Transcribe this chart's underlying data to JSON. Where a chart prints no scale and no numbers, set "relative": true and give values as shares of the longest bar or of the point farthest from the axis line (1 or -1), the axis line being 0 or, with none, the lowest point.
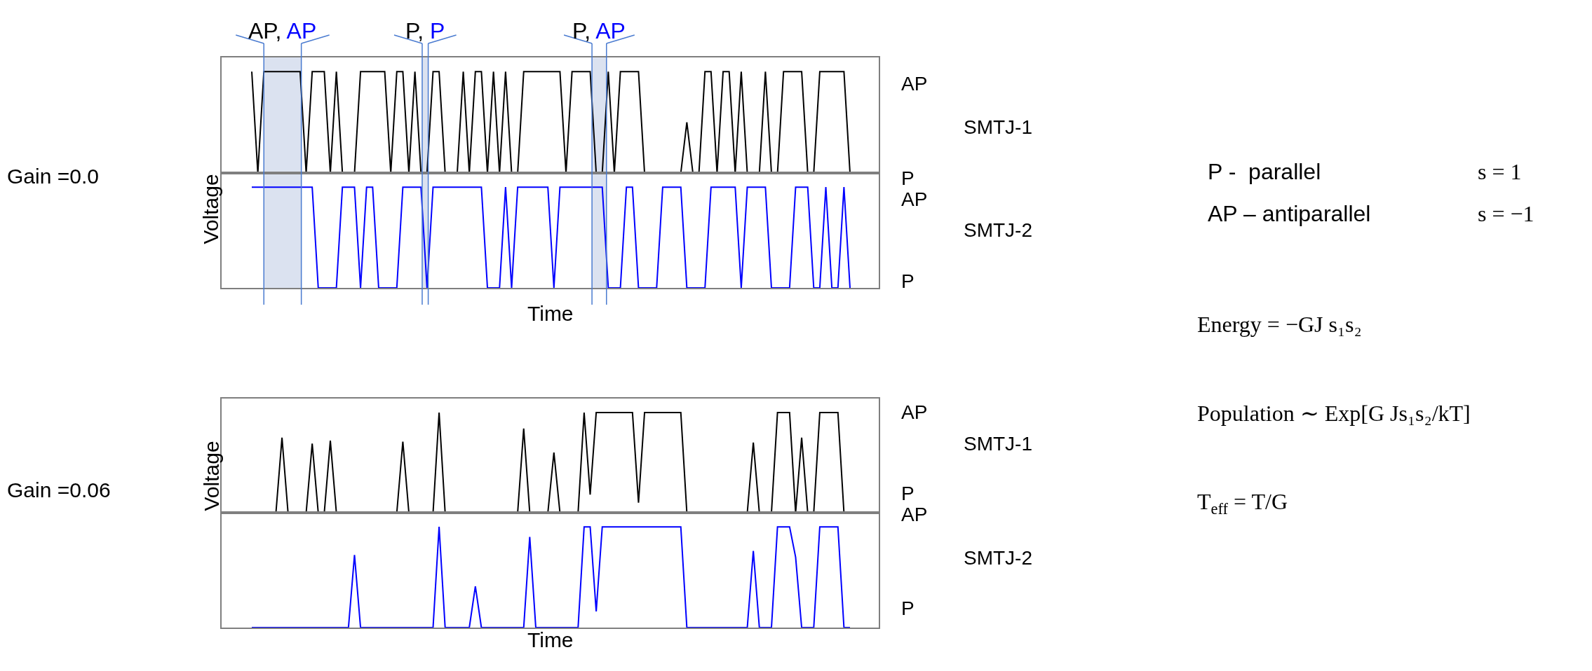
{
  "chart_data": [
    {
      "type": "line",
      "ylabel": "Voltage",
      "relative": true,
      "categories": [
        null,
        null,
        null,
        null,
        null,
        null,
        null,
        null,
        null,
        null,
        null,
        null,
        null,
        null,
        null,
        null,
        null,
        null,
        null,
        null,
        null,
        null,
        null,
        null,
        null,
        null,
        null,
        null,
        null,
        null,
        null,
        null,
        null,
        null,
        null,
        null,
        null,
        null,
        null,
        null,
        null,
        null,
        null,
        null,
        null,
        null,
        null,
        null,
        null,
        null,
        null,
        null,
        null,
        null,
        null,
        null,
        null,
        null,
        null,
        null,
        null,
        null,
        null,
        null,
        null,
        null,
        null,
        null,
        null,
        null,
        null,
        null,
        null,
        null,
        null,
        null,
        null,
        null,
        null,
        null,
        null,
        null,
        null,
        null,
        null,
        null,
        null,
        null,
        null,
        null,
        null,
        null,
        null,
        null,
        null,
        null,
        null,
        null,
        null,
        null
      ],
      "series": [
        {
          "name": "SMTJ-1",
          "color": "#000000",
          "values": [
            1,
            0,
            1,
            1,
            1,
            1,
            1,
            1,
            1,
            0,
            1,
            1,
            1,
            0,
            1,
            0,
            0,
            0,
            1,
            1,
            1,
            1,
            1,
            0,
            1,
            1,
            0,
            1,
            0,
            0,
            1,
            1,
            0,
            0,
            0,
            1,
            0,
            1,
            1,
            0,
            1,
            0,
            1,
            0,
            0,
            1,
            1,
            1,
            1,
            1,
            1,
            1,
            0,
            1,
            1,
            1,
            1,
            0,
            0,
            1,
            0,
            1,
            1,
            1,
            1,
            0,
            0,
            0,
            0,
            0,
            0,
            0,
            0.5,
            0,
            0,
            1,
            1,
            0,
            1,
            1,
            0,
            1,
            0,
            0,
            0,
            1,
            0,
            0,
            1,
            1,
            1,
            1,
            0,
            0,
            1,
            1,
            1,
            1,
            1,
            0
          ]
        }
      ],
      "annotations": [
        "AP",
        "P",
        "Gain =0.0",
        "AP, AP",
        "P, P",
        "P, AP"
      ]
    },
    {
      "type": "line",
      "xlabel": "Time",
      "relative": true,
      "categories": [
        null,
        null,
        null,
        null,
        null,
        null,
        null,
        null,
        null,
        null,
        null,
        null,
        null,
        null,
        null,
        null,
        null,
        null,
        null,
        null,
        null,
        null,
        null,
        null,
        null,
        null,
        null,
        null,
        null,
        null,
        null,
        null,
        null,
        null,
        null,
        null,
        null,
        null,
        null,
        null,
        null,
        null,
        null,
        null,
        null,
        null,
        null,
        null,
        null,
        null,
        null,
        null,
        null,
        null,
        null,
        null,
        null,
        null,
        null,
        null,
        null,
        null,
        null,
        null,
        null,
        null,
        null,
        null,
        null,
        null,
        null,
        null,
        null,
        null,
        null,
        null,
        null,
        null,
        null,
        null,
        null,
        null,
        null,
        null,
        null,
        null,
        null,
        null,
        null,
        null,
        null,
        null,
        null,
        null,
        null,
        null,
        null,
        null,
        null,
        null
      ],
      "series": [
        {
          "name": "SMTJ-2",
          "color": "#0000ff",
          "values": [
            1,
            1,
            1,
            1,
            1,
            1,
            1,
            1,
            1,
            1,
            1,
            0,
            0,
            0,
            0,
            1,
            1,
            1,
            0,
            1,
            1,
            0,
            0,
            0,
            0,
            1,
            1,
            1,
            1,
            0,
            1,
            1,
            1,
            1,
            1,
            1,
            1,
            1,
            1,
            0,
            0,
            0,
            1,
            0,
            1,
            1,
            1,
            1,
            1,
            1,
            0,
            1,
            1,
            1,
            1,
            1,
            1,
            1,
            1,
            0,
            0,
            0,
            1,
            1,
            0,
            0,
            0,
            0,
            1,
            1,
            1,
            1,
            0,
            0,
            0,
            0,
            1,
            1,
            1,
            1,
            1,
            0,
            1,
            1,
            1,
            1,
            0,
            0,
            0,
            0,
            1,
            1,
            1,
            0,
            0,
            1,
            0,
            0,
            1,
            0
          ]
        }
      ],
      "annotations": [
        "AP",
        "P"
      ]
    },
    {
      "type": "other",
      "annotations": [
        "P -  parallel",
        "s = 1",
        "AP – antiparallel",
        "s = −1",
        "Energy = −GJ s₁s₂",
        "Population ∼ Exp[G Js₁s₂/kT]",
        "T$_{eff}$ = T/G"
      ]
    },
    {
      "type": "line",
      "ylabel": "Voltage",
      "relative": true,
      "categories": [
        null,
        null,
        null,
        null,
        null,
        null,
        null,
        null,
        null,
        null,
        null,
        null,
        null,
        null,
        null,
        null,
        null,
        null,
        null,
        null,
        null,
        null,
        null,
        null,
        null,
        null,
        null,
        null,
        null,
        null,
        null,
        null,
        null,
        null,
        null,
        null,
        null,
        null,
        null,
        null,
        null,
        null,
        null,
        null,
        null,
        null,
        null,
        null,
        null,
        null,
        null,
        null,
        null,
        null,
        null,
        null,
        null,
        null,
        null,
        null,
        null,
        null,
        null,
        null,
        null,
        null,
        null,
        null,
        null,
        null,
        null,
        null,
        null,
        null,
        null,
        null,
        null,
        null,
        null,
        null,
        null,
        null,
        null,
        null,
        null,
        null,
        null,
        null,
        null,
        null,
        null,
        null,
        null,
        null,
        null,
        null,
        null,
        null,
        null,
        null
      ],
      "series": [
        {
          "name": "SMTJ-1",
          "color": "#000000",
          "values": [
            0,
            0,
            0,
            0,
            0,
            0.75,
            0,
            0,
            0,
            0,
            0.69,
            0,
            0,
            0.72,
            0,
            0,
            0,
            0,
            0,
            0,
            0,
            0,
            0,
            0,
            0,
            0.71,
            0,
            0,
            0,
            0,
            0,
            1,
            0,
            0,
            0,
            0,
            0,
            0,
            0,
            0,
            0,
            0,
            0,
            0,
            0,
            0.84,
            0,
            0,
            0,
            0,
            0.6,
            0,
            0,
            0,
            0,
            1,
            0.18,
            1,
            1,
            1,
            1,
            1,
            1,
            1,
            0.1,
            1,
            1,
            1,
            1,
            1,
            1,
            1,
            0,
            0,
            0,
            0,
            0,
            0,
            0,
            0,
            0,
            0,
            0,
            0.7,
            0,
            0,
            0,
            1,
            1,
            1,
            0,
            0.75,
            0,
            0,
            1,
            1,
            1,
            1,
            0,
            0
          ]
        }
      ],
      "annotations": [
        "AP",
        "P",
        "Gain =0.06"
      ]
    },
    {
      "type": "line",
      "xlabel": "Time",
      "relative": true,
      "categories": [
        null,
        null,
        null,
        null,
        null,
        null,
        null,
        null,
        null,
        null,
        null,
        null,
        null,
        null,
        null,
        null,
        null,
        null,
        null,
        null,
        null,
        null,
        null,
        null,
        null,
        null,
        null,
        null,
        null,
        null,
        null,
        null,
        null,
        null,
        null,
        null,
        null,
        null,
        null,
        null,
        null,
        null,
        null,
        null,
        null,
        null,
        null,
        null,
        null,
        null,
        null,
        null,
        null,
        null,
        null,
        null,
        null,
        null,
        null,
        null,
        null,
        null,
        null,
        null,
        null,
        null,
        null,
        null,
        null,
        null,
        null,
        null,
        null,
        null,
        null,
        null,
        null,
        null,
        null,
        null,
        null,
        null,
        null,
        null,
        null,
        null,
        null,
        null,
        null,
        null,
        null,
        null,
        null,
        null,
        null,
        null,
        null,
        null,
        null,
        null
      ],
      "series": [
        {
          "name": "SMTJ-2",
          "color": "#0000ff",
          "values": [
            0,
            0,
            0,
            0,
            0,
            0,
            0,
            0,
            0,
            0,
            0,
            0,
            0,
            0,
            0,
            0,
            0,
            0.72,
            0,
            0,
            0,
            0,
            0,
            0,
            0,
            0,
            0,
            0,
            0,
            0,
            0,
            1,
            0,
            0,
            0,
            0,
            0,
            0.41,
            0,
            0,
            0,
            0,
            0,
            0,
            0,
            0,
            0.9,
            0,
            0,
            0,
            0,
            0,
            0,
            0,
            0,
            1,
            1,
            0.16,
            1,
            1,
            1,
            1,
            1,
            1,
            1,
            1,
            1,
            1,
            1,
            1,
            1,
            1,
            0,
            0,
            0,
            0,
            0,
            0,
            0,
            0,
            0,
            0,
            0,
            0.76,
            0,
            0,
            0,
            1,
            1,
            1,
            0.7,
            0,
            0,
            0,
            1,
            1,
            1,
            1,
            0,
            0
          ]
        }
      ],
      "annotations": [
        "AP",
        "P"
      ]
    }
  ]
}
